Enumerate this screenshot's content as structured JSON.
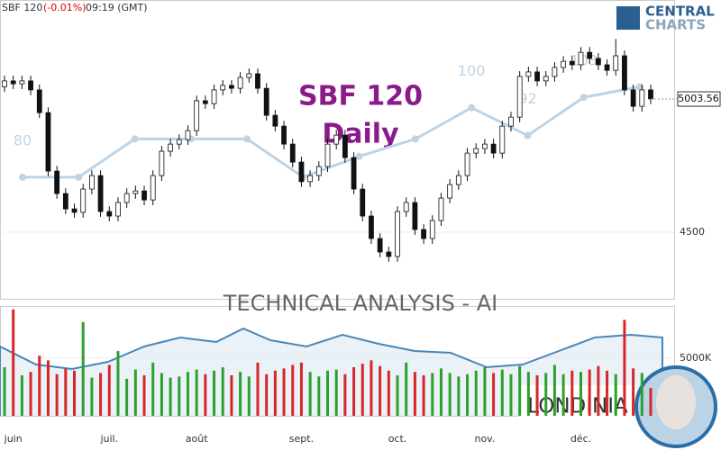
{
  "chart_data": {
    "type": "candlestick",
    "header": {
      "symbol": "SBF 120",
      "change": "(-0.01%)",
      "time": "09:19 (GMT)"
    },
    "title": "SBF 120",
    "subtitle": "Daily",
    "watermark": "TECHNICAL  ANALYSIS - AI",
    "brand": "LONDINIA",
    "logo": [
      "CENTRAL",
      "CHARTS"
    ],
    "categories": [
      null,
      "juin",
      null,
      null,
      null,
      null,
      null,
      null,
      null,
      null,
      null,
      null,
      "juil.",
      null,
      null,
      null,
      null,
      null,
      null,
      null,
      null,
      null,
      "août",
      null,
      null,
      null,
      null,
      null,
      null,
      null,
      null,
      null,
      null,
      null,
      "sept.",
      null,
      null,
      null,
      null,
      null,
      null,
      null,
      null,
      null,
      null,
      "oct.",
      null,
      null,
      null,
      null,
      null,
      null,
      null,
      null,
      null,
      "nov.",
      null,
      null,
      null,
      null,
      null,
      null,
      null,
      null,
      null,
      null,
      "déc.",
      null,
      null,
      null,
      null,
      null,
      null,
      null,
      null
    ],
    "open": [
      5050,
      5072,
      5061,
      5072,
      5038,
      4952,
      4731,
      4646,
      4588,
      4575,
      4663,
      4714,
      4578,
      4561,
      4612,
      4646,
      4656,
      4622,
      4714,
      4806,
      4833,
      4850,
      4884,
      4997,
      4986,
      5038,
      5055,
      5044,
      5085,
      5099,
      5044,
      4942,
      4901,
      4833,
      4765,
      4691,
      4714,
      4748,
      4833,
      4867,
      4782,
      4663,
      4561,
      4476,
      4425,
      4408,
      4578,
      4612,
      4510,
      4476,
      4544,
      4629,
      4680,
      4714,
      4799,
      4816,
      4833,
      4799,
      4901,
      4935,
      5089,
      5106,
      5072,
      5089,
      5123,
      5146,
      5133,
      5180,
      5157,
      5133,
      5112,
      5167,
      5038,
      4976,
      5038
    ],
    "high": [
      5092,
      5092,
      5092,
      5092,
      5058,
      4972,
      4751,
      4666,
      4608,
      4683,
      4734,
      4734,
      4598,
      4632,
      4666,
      4676,
      4676,
      4734,
      4826,
      4853,
      4870,
      4904,
      5017,
      5017,
      5058,
      5075,
      5075,
      5105,
      5119,
      5119,
      5064,
      4962,
      4921,
      4853,
      4785,
      4734,
      4768,
      4853,
      4887,
      4887,
      4802,
      4683,
      4581,
      4496,
      4445,
      4598,
      4632,
      4632,
      4530,
      4564,
      4649,
      4700,
      4734,
      4819,
      4836,
      4853,
      4853,
      4921,
      4955,
      5109,
      5126,
      5126,
      5109,
      5143,
      5166,
      5166,
      5200,
      5200,
      5177,
      5153,
      5231,
      5187,
      5058,
      5058,
      5058
    ],
    "low": [
      5030,
      5041,
      5041,
      5018,
      4932,
      4711,
      4626,
      4568,
      4555,
      4555,
      4643,
      4558,
      4541,
      4541,
      4592,
      4626,
      4602,
      4602,
      4694,
      4786,
      4813,
      4830,
      4864,
      4966,
      4966,
      5018,
      5024,
      5024,
      5065,
      5024,
      4922,
      4881,
      4813,
      4745,
      4671,
      4671,
      4694,
      4728,
      4813,
      4762,
      4643,
      4541,
      4456,
      4405,
      4388,
      4388,
      4558,
      4490,
      4456,
      4456,
      4524,
      4609,
      4660,
      4694,
      4779,
      4796,
      4779,
      4779,
      4881,
      4915,
      5069,
      5052,
      5052,
      5069,
      5103,
      5113,
      5113,
      5137,
      5113,
      5092,
      5092,
      5018,
      4956,
      4956,
      4984
    ],
    "close": [
      5072,
      5061,
      5072,
      5038,
      4952,
      4731,
      4646,
      4588,
      4575,
      4663,
      4714,
      4578,
      4561,
      4612,
      4646,
      4656,
      4622,
      4714,
      4806,
      4833,
      4850,
      4884,
      4997,
      4986,
      5038,
      5055,
      5044,
      5085,
      5099,
      5044,
      4942,
      4901,
      4833,
      4765,
      4691,
      4714,
      4748,
      4833,
      4867,
      4782,
      4663,
      4561,
      4476,
      4425,
      4408,
      4578,
      4612,
      4510,
      4476,
      4544,
      4629,
      4680,
      4714,
      4799,
      4816,
      4833,
      4799,
      4901,
      4935,
      5089,
      5106,
      5072,
      5089,
      5123,
      5146,
      5133,
      5180,
      5157,
      5133,
      5112,
      5167,
      5038,
      4976,
      5038,
      5004
    ],
    "ylim": [
      4248,
      5378
    ],
    "yticks": [
      4500
    ],
    "last_price": 5003.56,
    "volume": {
      "values": [
        4200,
        9200,
        3500,
        3800,
        5200,
        4800,
        3600,
        4100,
        3900,
        8100,
        3300,
        3700,
        4400,
        5600,
        3200,
        4000,
        3500,
        4600,
        3700,
        3300,
        3400,
        3800,
        4000,
        3600,
        3900,
        4200,
        3500,
        3800,
        3400,
        4600,
        3600,
        3900,
        4100,
        4400,
        4600,
        3800,
        3400,
        3900,
        4000,
        3600,
        4200,
        4500,
        4800,
        4300,
        3900,
        3500,
        4600,
        3800,
        3500,
        3700,
        4100,
        3700,
        3400,
        3600,
        3900,
        4200,
        3700,
        4000,
        3600,
        4300,
        3800,
        3500,
        3700,
        4400,
        3600,
        3900,
        3800,
        4000,
        4300,
        3900,
        3600,
        8300,
        4100,
        3700,
        2400
      ],
      "ylim": [
        0,
        9500
      ],
      "yticks": [
        {
          "value": 5000,
          "label": "5000K"
        }
      ]
    },
    "ai_score": {
      "values": [
        80,
        80,
        91,
        91,
        91,
        80,
        86,
        91,
        100,
        92,
        103,
        106
      ],
      "value_labels": [
        "80",
        null,
        null,
        null,
        null,
        null,
        null,
        null,
        "100",
        "92",
        "103",
        null
      ],
      "ylim": [
        45,
        131
      ]
    }
  }
}
